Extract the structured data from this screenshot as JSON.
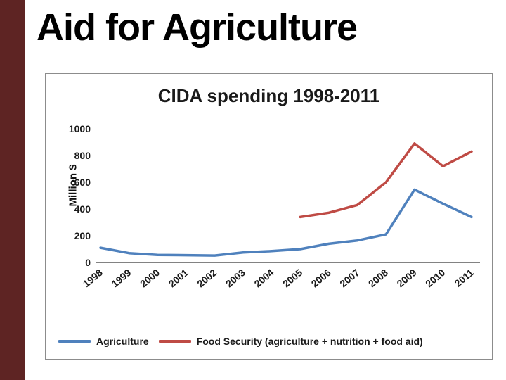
{
  "slide": {
    "title": "Aid for Agriculture"
  },
  "chart": {
    "title": "CIDA spending 1998-2011"
  },
  "chart_data": {
    "type": "line",
    "title": "CIDA spending 1998-2011",
    "xlabel": "",
    "ylabel": "Million $",
    "ylim": [
      0,
      1000
    ],
    "yticks": [
      0,
      200,
      400,
      600,
      800,
      1000
    ],
    "grid": false,
    "legend_position": "bottom",
    "categories": [
      "1998",
      "1999",
      "2000",
      "2001",
      "2002",
      "2003",
      "2004",
      "2005",
      "2006",
      "2007",
      "2008",
      "2009",
      "2010",
      "2011"
    ],
    "series": [
      {
        "name": "Agriculture",
        "color": "#4f81bd",
        "values": [
          110,
          70,
          57,
          55,
          52,
          75,
          85,
          100,
          140,
          165,
          210,
          545,
          440,
          340
        ]
      },
      {
        "name": "Food Security (agriculture + nutrition + food aid)",
        "color": "#bf4b45",
        "values": [
          null,
          null,
          null,
          null,
          null,
          null,
          null,
          340,
          372,
          430,
          600,
          890,
          720,
          830
        ]
      }
    ]
  }
}
